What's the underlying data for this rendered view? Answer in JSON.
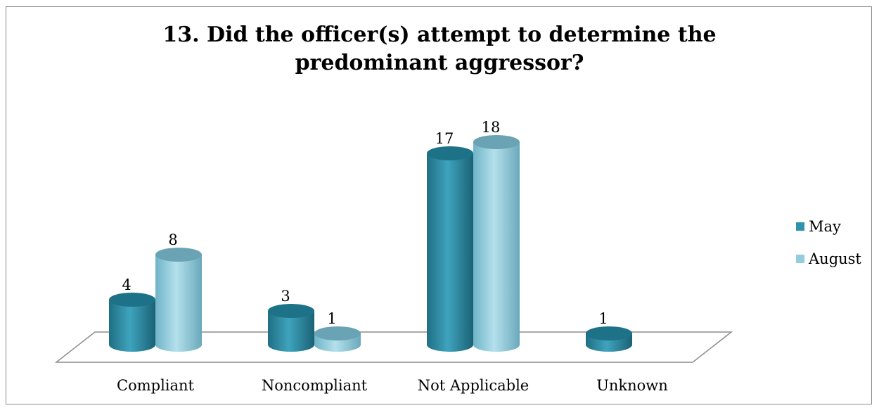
{
  "chart_data": {
    "type": "bar",
    "title": "13. Did the officer(s) attempt to determine the predominant aggressor?",
    "categories": [
      "Compliant",
      "Noncompliant",
      "Not Applicable",
      "Unknown"
    ],
    "series": [
      {
        "name": "May",
        "values": [
          4,
          3,
          17,
          1
        ],
        "color": "#2f93ad"
      },
      {
        "name": "August",
        "values": [
          8,
          1,
          18,
          null
        ],
        "color": "#93cddd"
      }
    ],
    "data_labels": true,
    "ylim": [
      0,
      18
    ],
    "grid": false,
    "legend_position": "right",
    "style": "3d-cylinder"
  }
}
